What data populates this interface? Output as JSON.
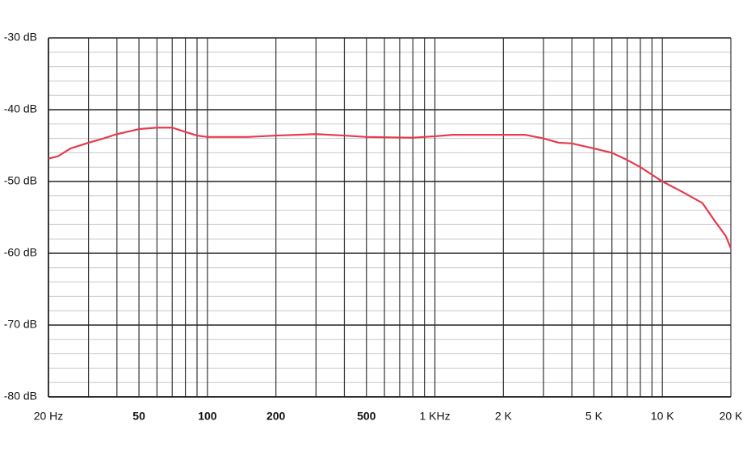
{
  "chart_data": {
    "type": "line",
    "x_scale": "log",
    "xlim": [
      20,
      20000
    ],
    "ylim": [
      -80,
      -30
    ],
    "xticks": [
      {
        "value": 20,
        "label": "20 Hz"
      },
      50,
      100,
      200,
      500,
      {
        "value": 1000,
        "label": "1 KHz"
      },
      {
        "value": 2000,
        "label": "2 K"
      },
      {
        "value": 5000,
        "label": "5 K"
      },
      {
        "value": 10000,
        "label": "10 K"
      },
      {
        "value": 20000,
        "label": "20 K"
      }
    ],
    "x_minor_ticks": [
      30,
      40,
      60,
      70,
      80,
      90,
      300,
      400,
      600,
      700,
      800,
      900,
      3000,
      4000,
      6000,
      7000,
      8000,
      9000
    ],
    "yticks": [
      {
        "value": -30,
        "label": "-30 dB"
      },
      {
        "value": -40,
        "label": "-40 dB"
      },
      {
        "value": -50,
        "label": "-50 dB"
      },
      {
        "value": -60,
        "label": "-60 dB"
      },
      {
        "value": -70,
        "label": "-70 dB"
      },
      {
        "value": -80,
        "label": "-80 dB"
      }
    ],
    "y_minor_ticks": [
      -32,
      -34,
      -36,
      -38,
      -42,
      -44,
      -46,
      -48,
      -52,
      -54,
      -56,
      -58,
      -62,
      -64,
      -66,
      -68,
      -72,
      -74,
      -76,
      -78
    ],
    "grid": true,
    "series": [
      {
        "color": "#e8394d",
        "x": [
          20,
          22,
          25,
          30,
          35,
          40,
          50,
          60,
          70,
          80,
          90,
          100,
          150,
          200,
          300,
          400,
          500,
          800,
          1000,
          1200,
          2000,
          2500,
          3000,
          3500,
          4000,
          5000,
          6000,
          7000,
          8000,
          10000,
          12000,
          15000,
          17000,
          19000,
          20000
        ],
        "values": [
          -46.8,
          -46.5,
          -45.4,
          -44.6,
          -44.0,
          -43.4,
          -42.7,
          -42.5,
          -42.5,
          -43.1,
          -43.6,
          -43.8,
          -43.8,
          -43.6,
          -43.4,
          -43.6,
          -43.8,
          -43.9,
          -43.7,
          -43.5,
          -43.5,
          -43.5,
          -44.0,
          -44.6,
          -44.7,
          -45.4,
          -46.0,
          -47.0,
          -48.0,
          -50.0,
          -51.3,
          -53.0,
          -55.5,
          -57.6,
          -59.3
        ]
      }
    ]
  }
}
